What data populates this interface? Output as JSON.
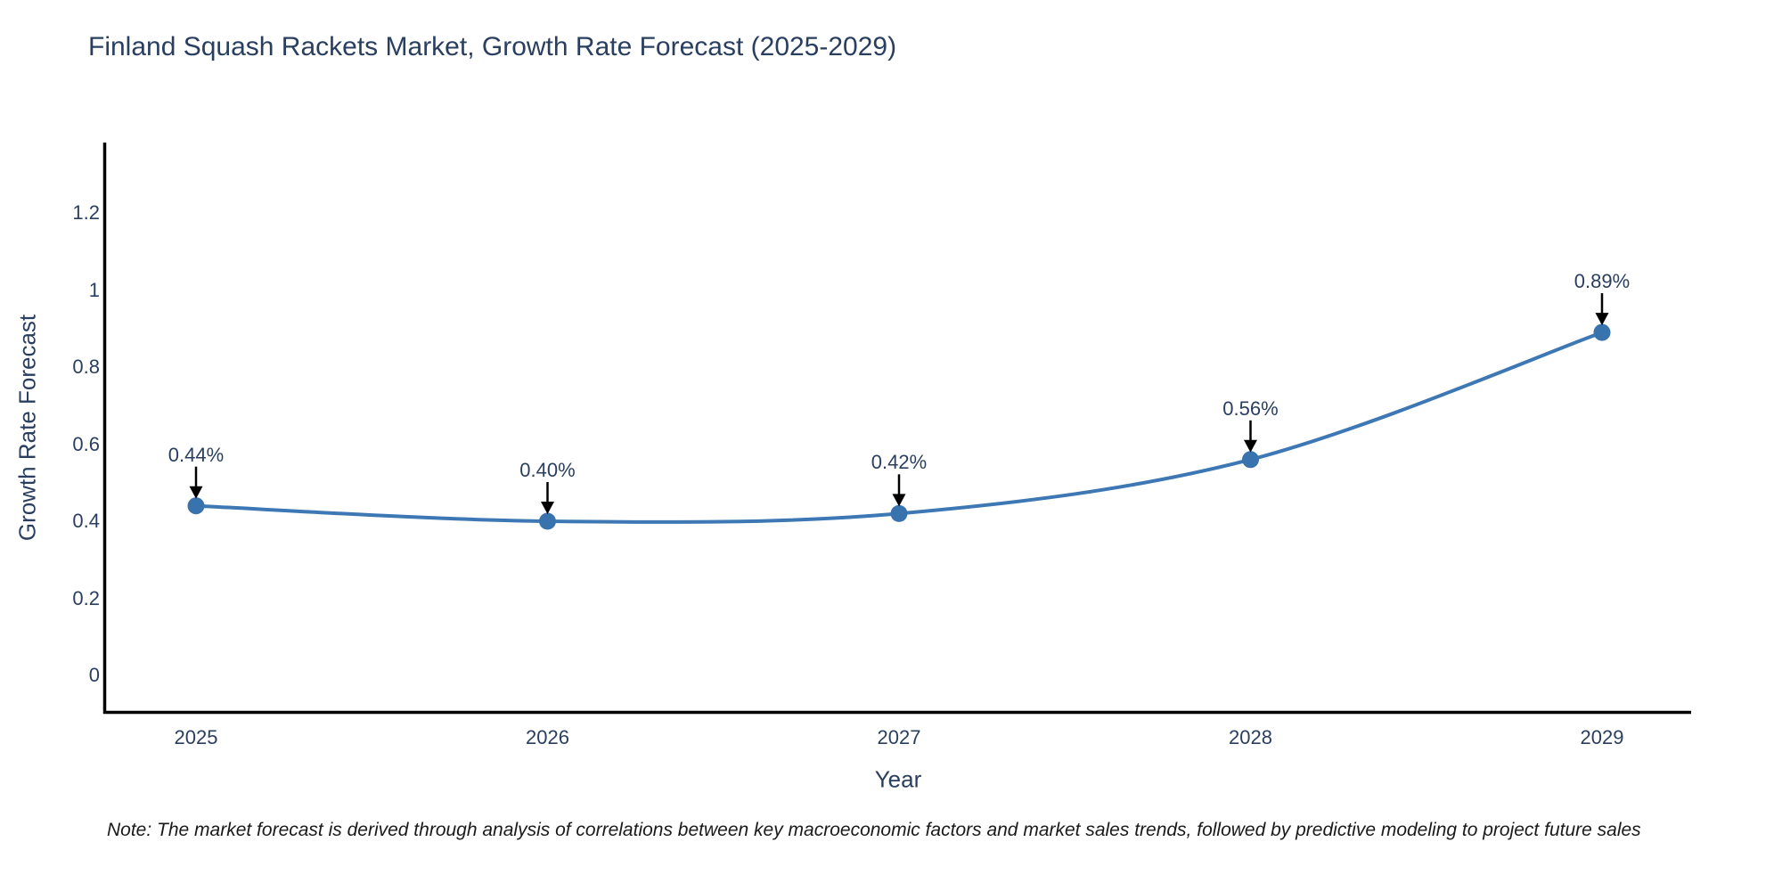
{
  "note": "Note: The market forecast is derived through analysis of correlations between key macroeconomic factors and market sales trends, followed by predictive modeling to project future sales",
  "chart_data": {
    "type": "line",
    "title": "Finland Squash Rackets Market, Growth Rate Forecast (2025-2029)",
    "xlabel": "Year",
    "ylabel": "Growth Rate Forecast",
    "categories": [
      "2025",
      "2026",
      "2027",
      "2028",
      "2029"
    ],
    "values": [
      0.44,
      0.4,
      0.42,
      0.56,
      0.89
    ],
    "point_labels": [
      "0.44%",
      "0.40%",
      "0.42%",
      "0.56%",
      "0.89%"
    ],
    "y_ticks": [
      0,
      0.2,
      0.4,
      0.6,
      0.8,
      1,
      1.2
    ],
    "y_tick_labels": [
      "0",
      "0.2",
      "0.4",
      "0.6",
      "0.8",
      "1",
      "1.2"
    ],
    "ylim": [
      0,
      1.2
    ],
    "grid": false,
    "legend": "none",
    "line_color": "#3d78b4",
    "marker_color": "#3973ae",
    "axis_color": "#000000",
    "text_color": "#2a3f5f",
    "annotation_arrow_color": "#000000",
    "background_color": "#ffffff"
  }
}
